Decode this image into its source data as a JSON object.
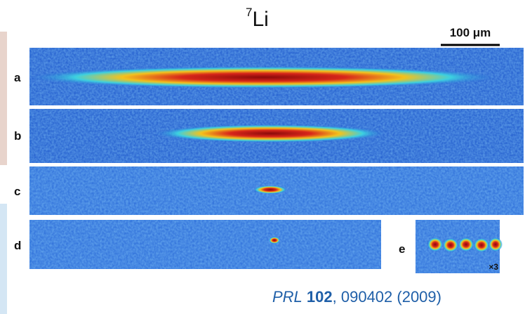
{
  "title": {
    "superscript": "7",
    "text": "Li"
  },
  "scale_bar": "100 μm",
  "panels": [
    {
      "label": "a"
    },
    {
      "label": "b"
    },
    {
      "label": "c"
    },
    {
      "label": "d"
    },
    {
      "label": "e"
    }
  ],
  "inset_note": "×3",
  "citation": {
    "journal": "PRL",
    "volume": "102",
    "rest": ", 090402 (2009)"
  }
}
